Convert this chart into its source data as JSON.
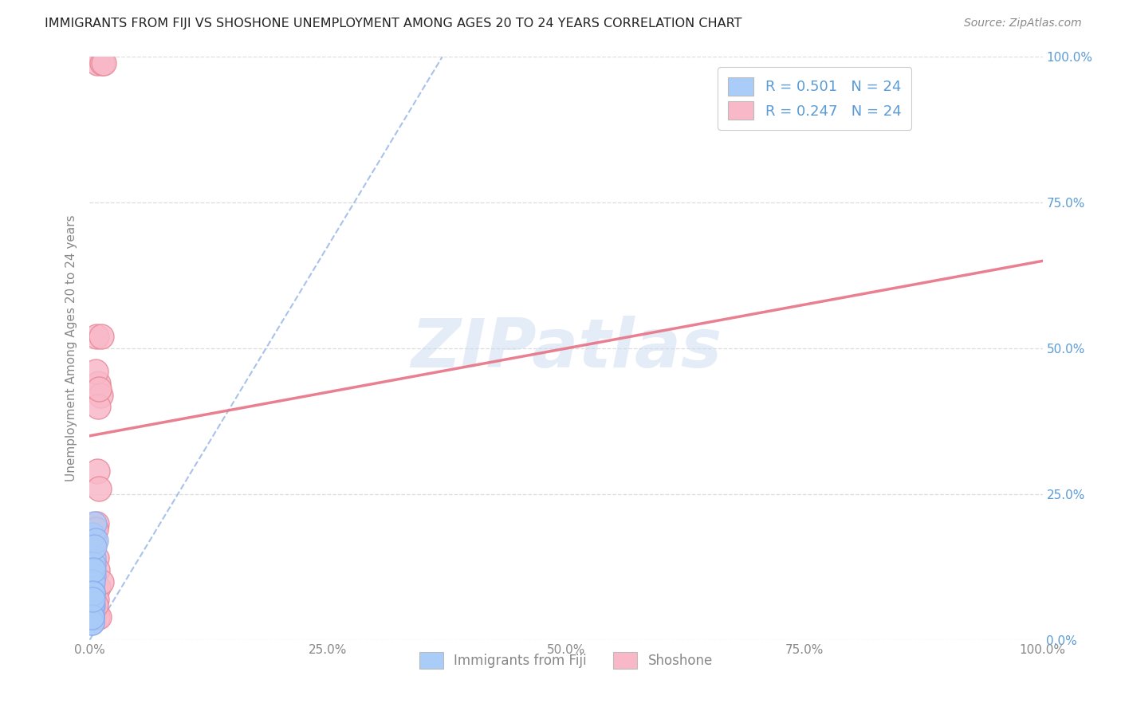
{
  "title": "IMMIGRANTS FROM FIJI VS SHOSHONE UNEMPLOYMENT AMONG AGES 20 TO 24 YEARS CORRELATION CHART",
  "source": "Source: ZipAtlas.com",
  "ylabel": "Unemployment Among Ages 20 to 24 years",
  "xlim": [
    0,
    1.0
  ],
  "ylim": [
    0,
    1.0
  ],
  "xticks": [
    0.0,
    0.25,
    0.5,
    0.75,
    1.0
  ],
  "xtick_labels": [
    "0.0%",
    "25.0%",
    "50.0%",
    "75.0%",
    "100.0%"
  ],
  "yticks": [
    0.0,
    0.25,
    0.5,
    0.75,
    1.0
  ],
  "ytick_labels_right": [
    "0.0%",
    "25.0%",
    "50.0%",
    "75.0%",
    "100.0%"
  ],
  "background_color": "#ffffff",
  "watermark_text": "ZIPatlas",
  "fiji_R": 0.501,
  "fiji_N": 24,
  "shoshone_R": 0.247,
  "shoshone_N": 24,
  "fiji_face_color": "#aaccf8",
  "fiji_edge_color": "#88aaee",
  "shoshone_face_color": "#f8b8c8",
  "shoshone_edge_color": "#e88898",
  "fiji_line_color": "#9ab8e8",
  "shoshone_line_color": "#e8788a",
  "fiji_scatter_x": [
    0.003,
    0.004,
    0.003,
    0.002,
    0.005,
    0.003,
    0.004,
    0.002,
    0.006,
    0.003,
    0.002,
    0.004,
    0.002,
    0.003,
    0.005,
    0.002,
    0.002,
    0.003,
    0.002,
    0.004,
    0.003,
    0.002,
    0.002,
    0.003
  ],
  "fiji_scatter_y": [
    0.18,
    0.14,
    0.12,
    0.09,
    0.2,
    0.06,
    0.11,
    0.05,
    0.17,
    0.08,
    0.04,
    0.13,
    0.06,
    0.1,
    0.16,
    0.04,
    0.03,
    0.08,
    0.04,
    0.12,
    0.08,
    0.03,
    0.04,
    0.07
  ],
  "shoshone_scatter_x": [
    0.008,
    0.013,
    0.015,
    0.007,
    0.009,
    0.011,
    0.006,
    0.009,
    0.01,
    0.012,
    0.007,
    0.005,
    0.006,
    0.008,
    0.01,
    0.007,
    0.008,
    0.009,
    0.006,
    0.008,
    0.01,
    0.007,
    0.012,
    0.006
  ],
  "shoshone_scatter_y": [
    0.99,
    0.99,
    0.99,
    0.52,
    0.44,
    0.42,
    0.46,
    0.4,
    0.43,
    0.52,
    0.2,
    0.17,
    0.19,
    0.29,
    0.26,
    0.14,
    0.12,
    0.09,
    0.05,
    0.04,
    0.04,
    0.07,
    0.1,
    0.06
  ],
  "title_color": "#222222",
  "axis_label_color": "#888888",
  "right_tick_color": "#5b9bd5",
  "grid_color": "#dddddd",
  "legend_text_color": "#5b9bd5",
  "fiji_trend_x0": 0.0,
  "fiji_trend_y0": 0.0,
  "fiji_trend_x1": 0.37,
  "fiji_trend_y1": 1.0,
  "shoshone_trend_x0": 0.0,
  "shoshone_trend_y0": 0.35,
  "shoshone_trend_x1": 1.0,
  "shoshone_trend_y1": 0.65
}
